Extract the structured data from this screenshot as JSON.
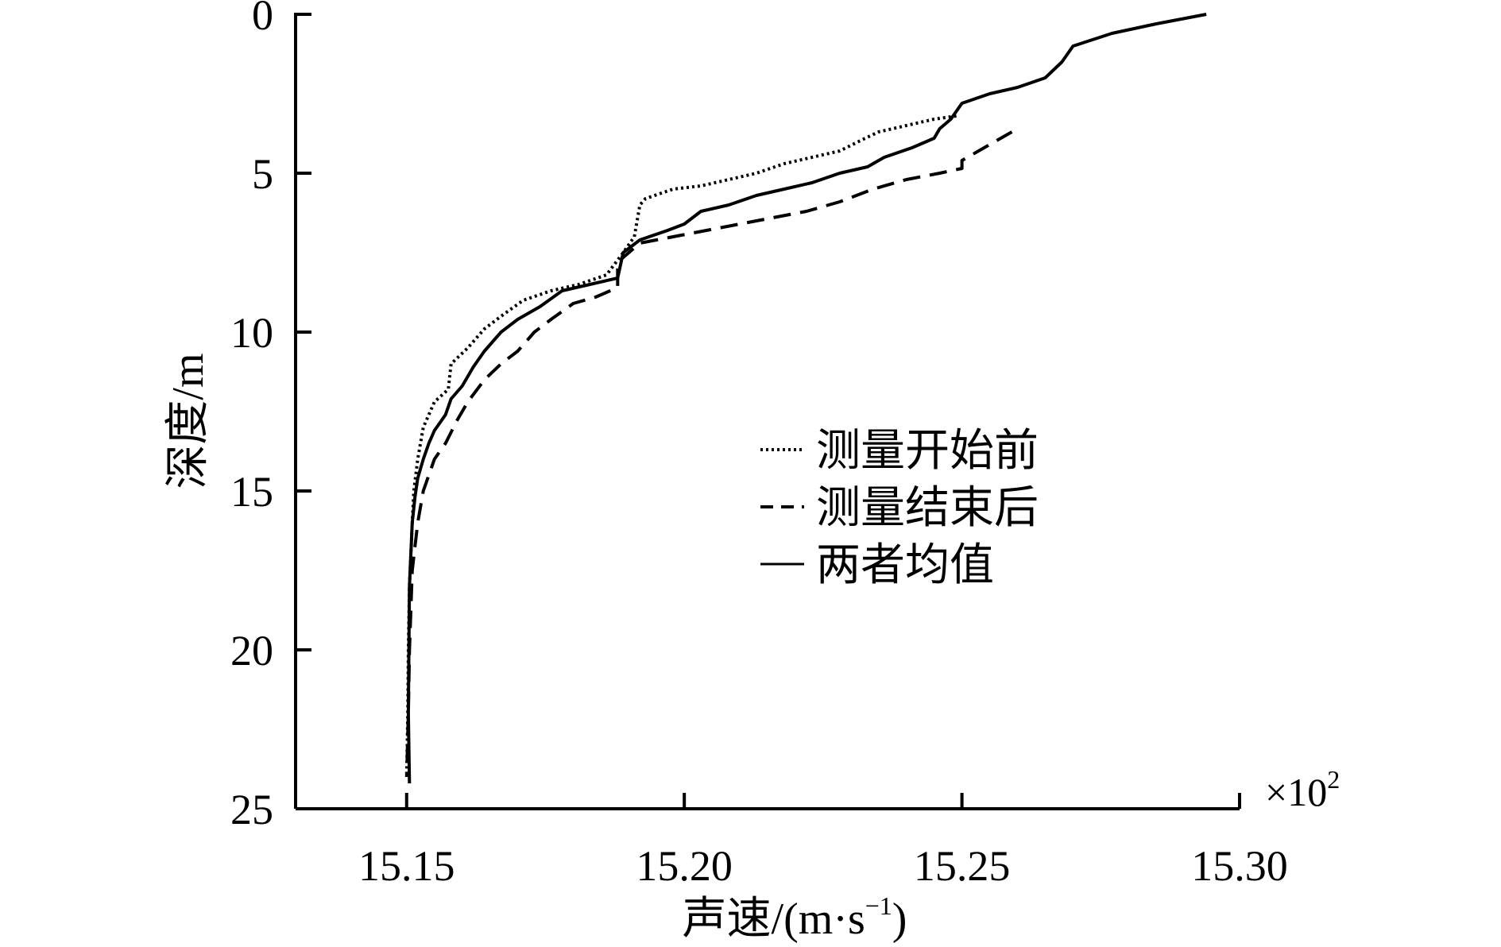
{
  "chart_data": {
    "type": "line",
    "xlabel": "声速/(m·s",
    "xlabel_sup": "−1",
    "xlabel_close": ")",
    "ylabel": "深度/m",
    "x_multiplier": "×10",
    "x_multiplier_exp": "2",
    "xlim": [
      15.13,
      15.3
    ],
    "ylim": [
      0,
      25
    ],
    "y_inverted": true,
    "x_ticks": [
      "15.15",
      "15.20",
      "15.25",
      "15.30"
    ],
    "x_tick_values": [
      15.15,
      15.2,
      15.25,
      15.3
    ],
    "y_ticks": [
      "0",
      "5",
      "10",
      "15",
      "20",
      "25"
    ],
    "y_tick_values": [
      0,
      5,
      10,
      15,
      20,
      25
    ],
    "grid": false,
    "legend_position": "center-right",
    "series": [
      {
        "name": "测量开始前",
        "style": "dotted",
        "points": [
          [
            15.249,
            3.2
          ],
          [
            15.245,
            3.3
          ],
          [
            15.24,
            3.5
          ],
          [
            15.235,
            3.7
          ],
          [
            15.232,
            3.95
          ],
          [
            15.228,
            4.3
          ],
          [
            15.223,
            4.5
          ],
          [
            15.218,
            4.7
          ],
          [
            15.213,
            5.0
          ],
          [
            15.208,
            5.2
          ],
          [
            15.203,
            5.4
          ],
          [
            15.198,
            5.5
          ],
          [
            15.193,
            5.8
          ],
          [
            15.192,
            6.0
          ],
          [
            15.191,
            7.0
          ],
          [
            15.189,
            7.5
          ],
          [
            15.186,
            8.2
          ],
          [
            15.181,
            8.5
          ],
          [
            15.176,
            8.7
          ],
          [
            15.171,
            9.0
          ],
          [
            15.167,
            9.5
          ],
          [
            15.164,
            9.9
          ],
          [
            15.161,
            10.5
          ],
          [
            15.158,
            11.0
          ],
          [
            15.1575,
            11.8
          ],
          [
            15.155,
            12.2
          ],
          [
            15.153,
            13.0
          ],
          [
            15.152,
            14.0
          ],
          [
            15.1513,
            15.0
          ],
          [
            15.151,
            16.0
          ],
          [
            15.1505,
            18.0
          ],
          [
            15.1503,
            20.0
          ],
          [
            15.1502,
            22.0
          ],
          [
            15.15,
            24.0
          ]
        ]
      },
      {
        "name": "测量结束后",
        "style": "dashed",
        "points": [
          [
            15.259,
            3.7
          ],
          [
            15.254,
            4.2
          ],
          [
            15.25,
            4.6
          ],
          [
            15.25,
            4.85
          ],
          [
            15.246,
            5.0
          ],
          [
            15.24,
            5.2
          ],
          [
            15.234,
            5.5
          ],
          [
            15.228,
            5.9
          ],
          [
            15.222,
            6.2
          ],
          [
            15.216,
            6.4
          ],
          [
            15.21,
            6.6
          ],
          [
            15.204,
            6.8
          ],
          [
            15.198,
            7.0
          ],
          [
            15.192,
            7.2
          ],
          [
            15.188,
            7.8
          ],
          [
            15.188,
            8.6
          ],
          [
            15.184,
            8.9
          ],
          [
            15.18,
            9.1
          ],
          [
            15.176,
            9.6
          ],
          [
            15.173,
            10.0
          ],
          [
            15.17,
            10.6
          ],
          [
            15.167,
            11.0
          ],
          [
            15.164,
            11.5
          ],
          [
            15.161,
            12.2
          ],
          [
            15.159,
            12.8
          ],
          [
            15.157,
            13.5
          ],
          [
            15.155,
            14.0
          ],
          [
            15.153,
            15.0
          ],
          [
            15.152,
            16.0
          ],
          [
            15.151,
            17.5
          ],
          [
            15.1505,
            20.0
          ],
          [
            15.1503,
            22.0
          ],
          [
            15.15,
            24.0
          ]
        ]
      },
      {
        "name": "两者均值",
        "style": "solid",
        "points": [
          [
            15.294,
            0.0
          ],
          [
            15.285,
            0.3
          ],
          [
            15.277,
            0.6
          ],
          [
            15.27,
            1.0
          ],
          [
            15.268,
            1.5
          ],
          [
            15.265,
            2.0
          ],
          [
            15.26,
            2.3
          ],
          [
            15.255,
            2.5
          ],
          [
            15.25,
            2.8
          ],
          [
            15.248,
            3.3
          ],
          [
            15.246,
            3.6
          ],
          [
            15.245,
            3.9
          ],
          [
            15.241,
            4.2
          ],
          [
            15.236,
            4.5
          ],
          [
            15.233,
            4.8
          ],
          [
            15.228,
            5.0
          ],
          [
            15.223,
            5.3
          ],
          [
            15.218,
            5.5
          ],
          [
            15.213,
            5.7
          ],
          [
            15.208,
            6.0
          ],
          [
            15.203,
            6.2
          ],
          [
            15.2,
            6.6
          ],
          [
            15.197,
            6.8
          ],
          [
            15.192,
            7.1
          ],
          [
            15.189,
            7.5
          ],
          [
            15.188,
            8.3
          ],
          [
            15.183,
            8.5
          ],
          [
            15.178,
            8.7
          ],
          [
            15.174,
            9.2
          ],
          [
            15.17,
            9.6
          ],
          [
            15.167,
            10.0
          ],
          [
            15.164,
            10.6
          ],
          [
            15.162,
            11.1
          ],
          [
            15.16,
            11.7
          ],
          [
            15.158,
            12.1
          ],
          [
            15.157,
            12.6
          ],
          [
            15.155,
            13.1
          ],
          [
            15.154,
            13.5
          ],
          [
            15.153,
            14.0
          ],
          [
            15.152,
            14.6
          ],
          [
            15.1515,
            15.2
          ],
          [
            15.151,
            16.0
          ],
          [
            15.1505,
            18.0
          ],
          [
            15.1504,
            20.0
          ],
          [
            15.1503,
            22.0
          ],
          [
            15.1505,
            24.2
          ]
        ]
      }
    ]
  }
}
